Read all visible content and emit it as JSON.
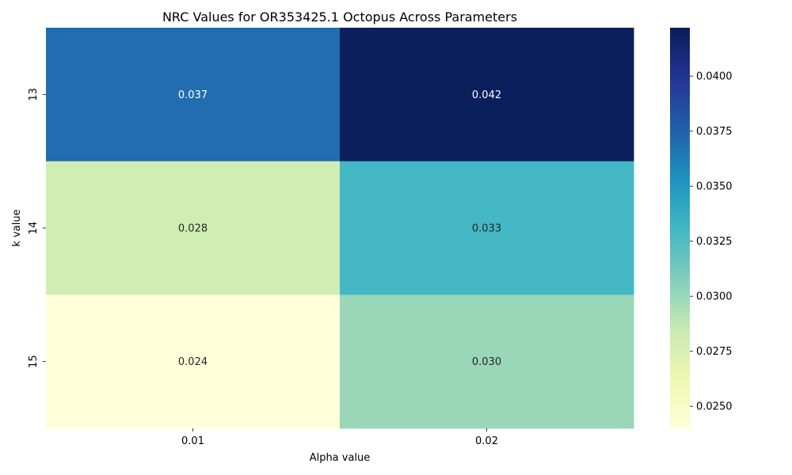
{
  "chart_data": {
    "type": "heatmap",
    "title": "NRC Values for OR353425.1 Octopus Across Parameters",
    "xlabel": "Alpha value",
    "ylabel": "k value",
    "x_categories": [
      "0.01",
      "0.02"
    ],
    "y_categories": [
      "13",
      "14",
      "15"
    ],
    "values": [
      [
        0.037,
        0.042
      ],
      [
        0.028,
        0.033
      ],
      [
        0.024,
        0.03
      ]
    ],
    "value_labels": [
      [
        "0.037",
        "0.042"
      ],
      [
        "0.028",
        "0.033"
      ],
      [
        "0.024",
        "0.030"
      ]
    ],
    "colormap": "YlGnBu",
    "colorbar": {
      "range": [
        0.024,
        0.0422
      ],
      "ticks": [
        0.025,
        0.0275,
        0.03,
        0.0325,
        0.035,
        0.0375,
        0.04
      ],
      "tick_labels": [
        "0.0250",
        "0.0275",
        "0.0300",
        "0.0325",
        "0.0350",
        "0.0375",
        "0.0400"
      ]
    },
    "grid": false
  }
}
